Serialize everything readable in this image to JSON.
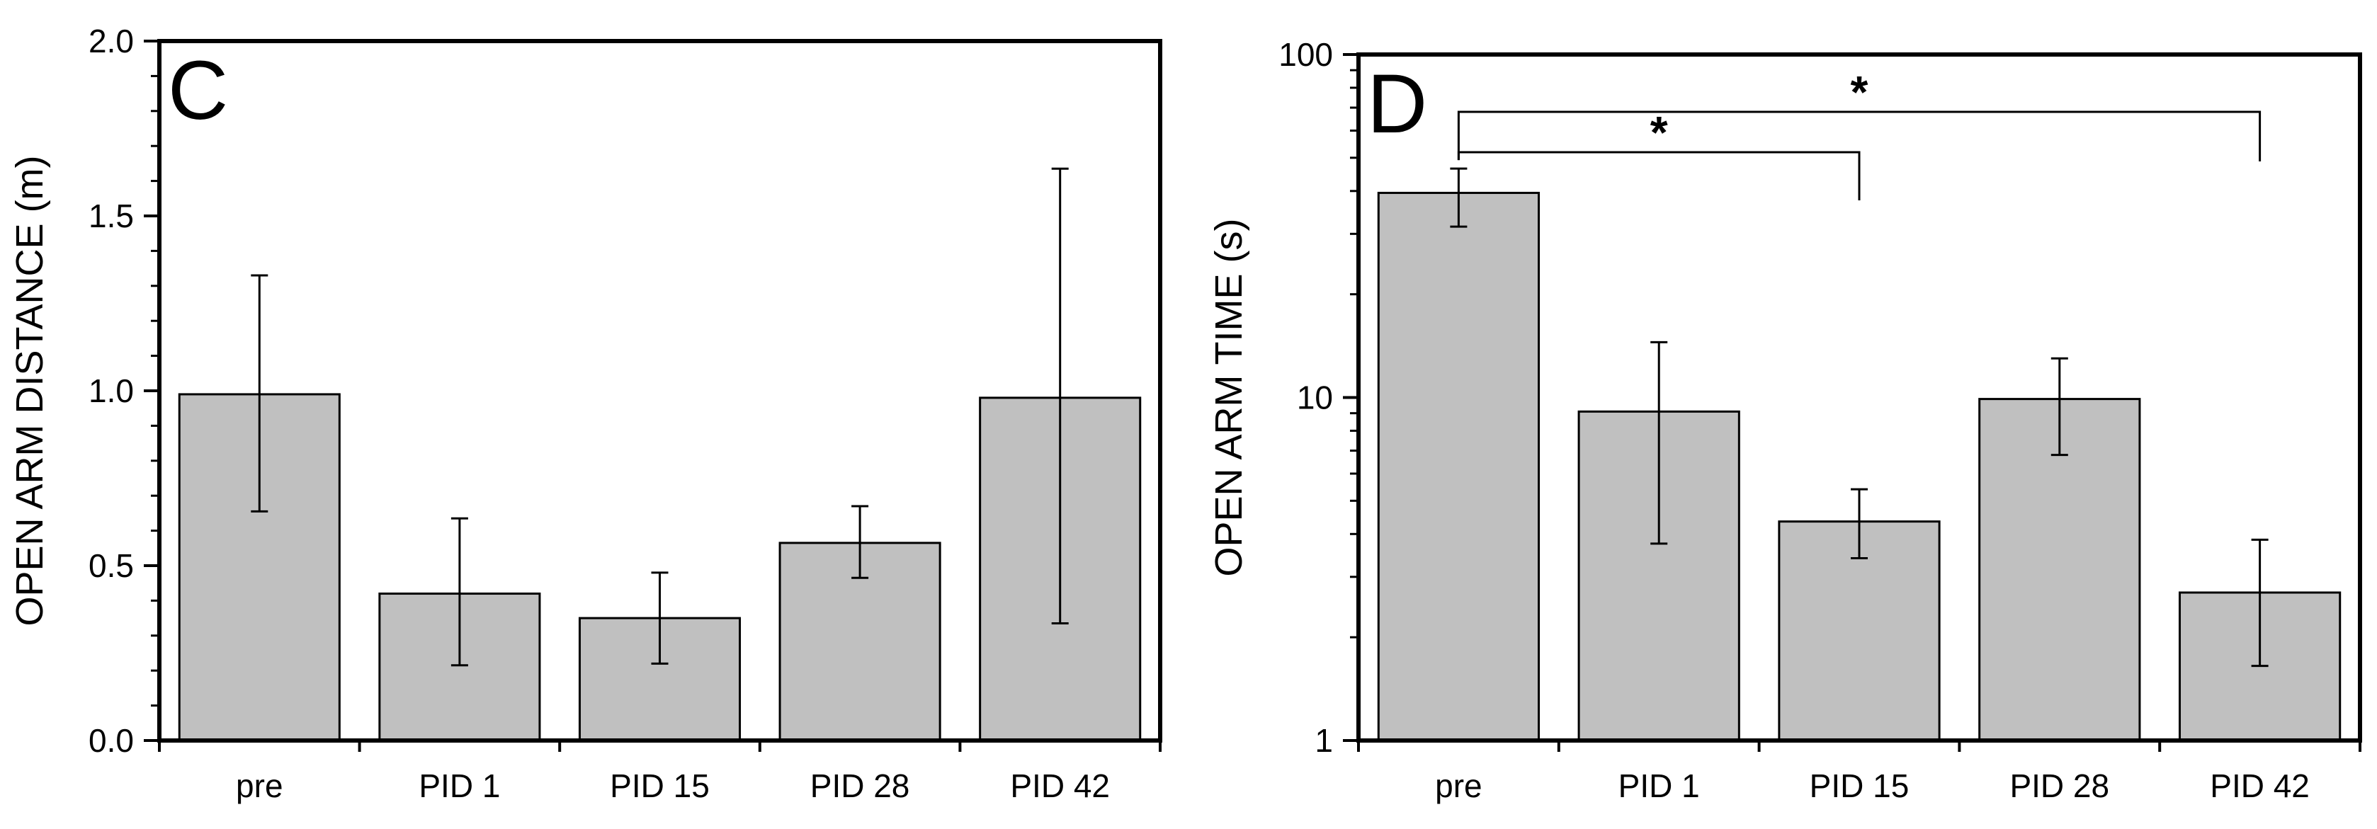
{
  "chart_data": [
    {
      "type": "bar",
      "panel_label": "C",
      "ylabel": "OPEN ARM DISTANCE (m)",
      "xlabel": "",
      "yscale": "linear",
      "ylim": [
        0,
        2.0
      ],
      "y_major_ticks": [
        0.0,
        0.5,
        1.0,
        1.5,
        2.0
      ],
      "y_tick_labels": [
        "0.0",
        "0.5",
        "1.0",
        "1.5",
        "2.0"
      ],
      "y_minor_step": 0.1,
      "categories": [
        "pre",
        "PID 1",
        "PID 15",
        "PID 28",
        "PID 42"
      ],
      "values": [
        0.99,
        0.42,
        0.35,
        0.565,
        0.98
      ],
      "err_low": [
        0.655,
        0.215,
        0.22,
        0.465,
        0.335
      ],
      "err_high": [
        1.33,
        0.635,
        0.48,
        0.67,
        1.635
      ],
      "bar_color": "#c0c0c0",
      "significance": []
    },
    {
      "type": "bar",
      "panel_label": "D",
      "ylabel": "OPEN ARM TIME (s)",
      "xlabel": "",
      "yscale": "log",
      "ylim": [
        1,
        100
      ],
      "y_major_ticks": [
        1,
        10,
        100
      ],
      "y_tick_labels": [
        "1",
        "10",
        "100"
      ],
      "categories": [
        "pre",
        "PID 1",
        "PID 15",
        "PID 28",
        "PID 42"
      ],
      "values": [
        39.5,
        9.1,
        4.35,
        9.9,
        2.7
      ],
      "err_low": [
        31.5,
        3.75,
        3.4,
        6.8,
        1.65
      ],
      "err_high": [
        46.5,
        14.5,
        5.4,
        13.0,
        3.85
      ],
      "bar_color": "#c0c0c0",
      "significance": [
        {
          "from": 0,
          "to": 2,
          "label": "*"
        },
        {
          "from": 0,
          "to": 4,
          "label": "*"
        }
      ]
    }
  ]
}
